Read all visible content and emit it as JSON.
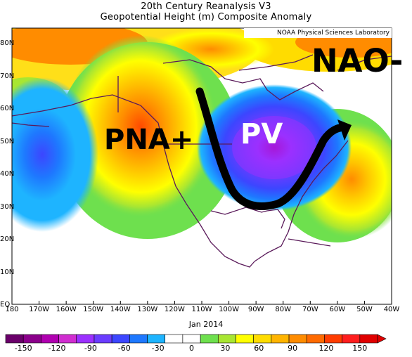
{
  "header": {
    "title": "20th Century Reanalysis V3",
    "subtitle": "Geopotential Height (m) Composite Anomaly"
  },
  "credit": "NOAA Physical Sciences Laboratory",
  "period": "Jan 2014",
  "labels": {
    "pna": "PNA+",
    "pv": "PV",
    "nao": "NAO-"
  },
  "axes": {
    "lat_ticks": [
      "80N",
      "70N",
      "60N",
      "50N",
      "40N",
      "30N",
      "20N",
      "10N",
      "EQ"
    ],
    "lon_ticks": [
      "180",
      "170W",
      "160W",
      "150W",
      "140W",
      "130W",
      "120W",
      "110W",
      "100W",
      "90W",
      "80W",
      "70W",
      "60W",
      "50W",
      "40W"
    ]
  },
  "colorbar": {
    "ticks": [
      "-150",
      "-120",
      "-90",
      "-60",
      "-30",
      "0",
      "30",
      "60",
      "90",
      "120",
      "150"
    ],
    "colors": [
      "#6a006a",
      "#8b008b",
      "#b000b0",
      "#d02dd0",
      "#9b30ff",
      "#6a3cff",
      "#3c46ff",
      "#1e78ff",
      "#1eb4ff",
      "#ffffff",
      "#ffffff",
      "#6ee04e",
      "#a8e632",
      "#ffff00",
      "#ffdc00",
      "#ffb400",
      "#ff8c00",
      "#ff6a00",
      "#ff3c00",
      "#ff1e1e",
      "#e00000"
    ]
  },
  "colors": {
    "ocean_bg": "#ffffff",
    "coast": "#5a1a5a",
    "arrow": "#000000"
  }
}
